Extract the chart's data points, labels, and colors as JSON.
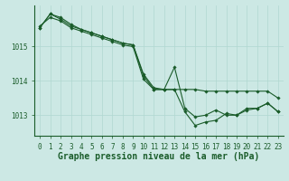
{
  "title": "Graphe pression niveau de la mer (hPa)",
  "x_ticks": [
    0,
    1,
    2,
    3,
    4,
    5,
    6,
    7,
    8,
    9,
    10,
    11,
    12,
    13,
    14,
    15,
    16,
    17,
    18,
    19,
    20,
    21,
    22,
    23
  ],
  "ylim": [
    1012.4,
    1016.2
  ],
  "yticks": [
    1013,
    1014,
    1015
  ],
  "bg_color": "#cce8e4",
  "grid_color": "#b0d8d0",
  "line_color": "#1a5c2a",
  "series": [
    [
      1015.6,
      1015.85,
      1015.75,
      1015.55,
      1015.45,
      1015.35,
      1015.25,
      1015.15,
      1015.05,
      1015.0,
      1014.05,
      1013.75,
      1013.75,
      1013.75,
      1013.75,
      1013.75,
      1013.7,
      1013.7,
      1013.7,
      1013.7,
      1013.7,
      1013.7,
      1013.7,
      1013.5
    ],
    [
      1015.55,
      1015.95,
      1015.8,
      1015.6,
      1015.5,
      1015.4,
      1015.3,
      1015.2,
      1015.1,
      1015.05,
      1014.15,
      1013.75,
      1013.75,
      1013.75,
      1013.1,
      1012.7,
      1012.8,
      1012.85,
      1013.05,
      1013.0,
      1013.15,
      1013.2,
      1013.35,
      1013.1
    ],
    [
      1015.55,
      1015.95,
      1015.85,
      1015.65,
      1015.5,
      1015.4,
      1015.3,
      1015.2,
      1015.1,
      1015.05,
      1014.2,
      1013.8,
      1013.75,
      1014.4,
      1013.2,
      1012.95,
      1013.0,
      1013.15,
      1013.0,
      1013.0,
      1013.2,
      1013.2,
      1013.35,
      1013.1
    ]
  ],
  "marker": "D",
  "marker_size": 1.8,
  "linewidth": 0.8,
  "tick_fontsize": 5.5,
  "label_fontsize": 7.0,
  "xlabel_fontweight": "bold"
}
